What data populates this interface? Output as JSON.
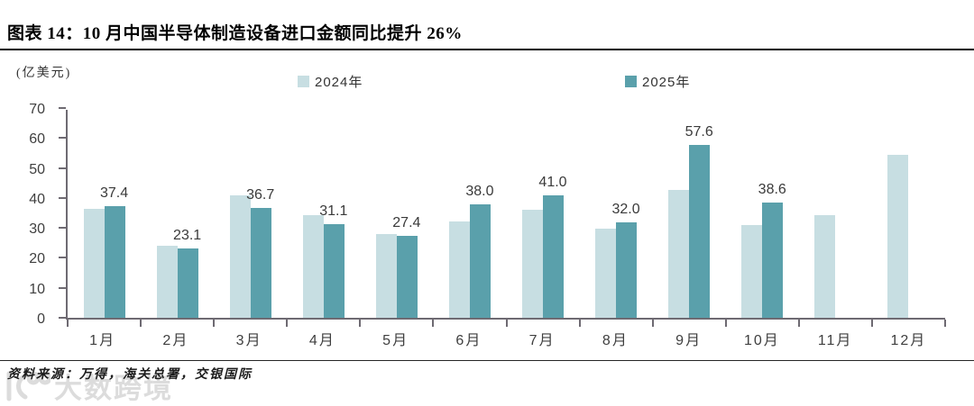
{
  "header": {
    "title": "图表 14：10 月中国半导体制造设备进口金额同比提升 26%"
  },
  "chart_data": {
    "type": "bar",
    "title": "图表 14：10 月中国半导体制造设备进口金额同比提升 26%",
    "unit_label": "(亿美元)",
    "categories": [
      "1月",
      "2月",
      "3月",
      "4月",
      "5月",
      "6月",
      "7月",
      "8月",
      "9月",
      "10月",
      "11月",
      "12月"
    ],
    "series": [
      {
        "name": "2024年",
        "color": "#c7dee2",
        "values": [
          36.5,
          24.0,
          40.9,
          34.3,
          27.9,
          32.1,
          36.2,
          29.8,
          42.7,
          30.8,
          34.4,
          54.4
        ]
      },
      {
        "name": "2025年",
        "color": "#5aa0ab",
        "values": [
          37.4,
          23.1,
          36.7,
          31.1,
          27.4,
          38.0,
          41.0,
          32.0,
          57.6,
          38.6,
          null,
          null
        ],
        "data_labels": [
          "37.4",
          "23.1",
          "36.7",
          "31.1",
          "27.4",
          "38.0",
          "41.0",
          "32.0",
          "57.6",
          "38.6",
          "",
          ""
        ]
      }
    ],
    "ylim": [
      0,
      70
    ],
    "yticks": [
      0,
      10,
      20,
      30,
      40,
      50,
      60,
      70
    ],
    "grid": false,
    "legend_position": "top",
    "axis_color": "#6e6a72"
  },
  "footer": {
    "source": "资料来源：万得，海关总署，交银国际",
    "watermark": "大数跨境"
  }
}
